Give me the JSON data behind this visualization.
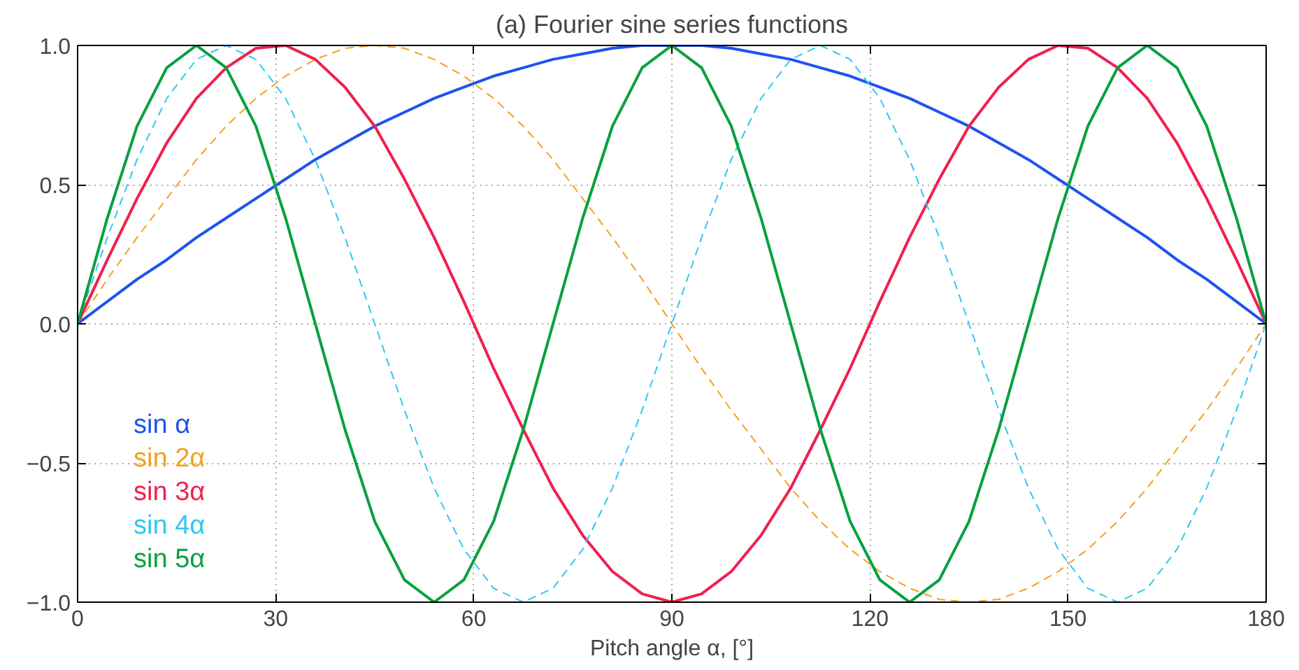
{
  "chart_data": {
    "type": "line",
    "title": "(a) Fourier sine series functions",
    "xlabel": "Pitch angle α, [°]",
    "x": [
      0,
      4.5,
      9,
      13.5,
      18,
      22.5,
      27,
      31.5,
      36,
      40.5,
      45,
      49.5,
      54,
      58.5,
      63,
      67.5,
      72,
      76.5,
      81,
      85.5,
      90,
      94.5,
      99,
      103.5,
      108,
      112.5,
      117,
      121.5,
      126,
      130.5,
      135,
      139.5,
      144,
      148.5,
      153,
      157.5,
      162,
      166.5,
      171,
      175.5,
      180
    ],
    "series": [
      {
        "name": "sin α",
        "color": "#1f52f0",
        "line_style": "solid",
        "values": [
          0,
          0.08,
          0.16,
          0.23,
          0.31,
          0.38,
          0.45,
          0.52,
          0.59,
          0.65,
          0.71,
          0.76,
          0.81,
          0.85,
          0.89,
          0.92,
          0.95,
          0.97,
          0.99,
          1,
          1,
          1,
          0.99,
          0.97,
          0.95,
          0.92,
          0.89,
          0.85,
          0.81,
          0.76,
          0.71,
          0.65,
          0.59,
          0.52,
          0.45,
          0.38,
          0.31,
          0.23,
          0.16,
          0.08,
          0
        ]
      },
      {
        "name": "sin 2α",
        "color": "#f5a020",
        "line_style": "dashed",
        "values": [
          0,
          0.16,
          0.31,
          0.45,
          0.59,
          0.71,
          0.81,
          0.89,
          0.95,
          0.99,
          1,
          0.99,
          0.95,
          0.89,
          0.81,
          0.71,
          0.59,
          0.45,
          0.31,
          0.16,
          0,
          -0.16,
          -0.31,
          -0.45,
          -0.59,
          -0.71,
          -0.81,
          -0.89,
          -0.95,
          -0.99,
          -1,
          -0.99,
          -0.95,
          -0.89,
          -0.81,
          -0.71,
          -0.59,
          -0.45,
          -0.31,
          -0.16,
          0
        ]
      },
      {
        "name": "sin 3α",
        "color": "#f0204f",
        "line_style": "solid",
        "values": [
          0,
          0.23,
          0.45,
          0.65,
          0.81,
          0.92,
          0.99,
          1,
          0.95,
          0.85,
          0.71,
          0.52,
          0.31,
          0.08,
          -0.16,
          -0.38,
          -0.59,
          -0.76,
          -0.89,
          -0.97,
          -1,
          -0.97,
          -0.89,
          -0.76,
          -0.59,
          -0.38,
          -0.16,
          0.08,
          0.31,
          0.52,
          0.71,
          0.85,
          0.95,
          1,
          0.99,
          0.92,
          0.81,
          0.65,
          0.45,
          0.23,
          0
        ]
      },
      {
        "name": "sin 4α",
        "color": "#30c8f0",
        "line_style": "dashed",
        "values": [
          0,
          0.31,
          0.59,
          0.81,
          0.95,
          1,
          0.95,
          0.81,
          0.59,
          0.31,
          0,
          -0.31,
          -0.59,
          -0.81,
          -0.95,
          -1,
          -0.95,
          -0.81,
          -0.59,
          -0.31,
          0,
          0.31,
          0.59,
          0.81,
          0.95,
          1,
          0.95,
          0.81,
          0.59,
          0.31,
          0,
          -0.31,
          -0.59,
          -0.81,
          -0.95,
          -1,
          -0.95,
          -0.81,
          -0.59,
          -0.31,
          0
        ]
      },
      {
        "name": "sin 5α",
        "color": "#0aa040",
        "line_style": "solid",
        "values": [
          0,
          0.38,
          0.71,
          0.92,
          1,
          0.92,
          0.71,
          0.38,
          0,
          -0.38,
          -0.71,
          -0.92,
          -1,
          -0.92,
          -0.71,
          -0.38,
          0,
          0.38,
          0.71,
          0.92,
          1,
          0.92,
          0.71,
          0.38,
          0,
          -0.38,
          -0.71,
          -0.92,
          -1,
          -0.92,
          -0.71,
          -0.38,
          0,
          0.38,
          0.71,
          0.92,
          1,
          0.92,
          0.71,
          0.38,
          0
        ]
      }
    ],
    "xlim": [
      0,
      180
    ],
    "xticks": [
      0,
      30,
      60,
      90,
      120,
      150,
      180
    ],
    "ylim": [
      -1,
      1
    ],
    "yticks": [
      {
        "value": -1,
        "label": "−1.0"
      },
      {
        "value": -0.5,
        "label": "−0.5"
      },
      {
        "value": 0,
        "label": "0.0"
      },
      {
        "value": 0.5,
        "label": "0.5"
      },
      {
        "value": 1,
        "label": "1.0"
      }
    ],
    "grid": true,
    "legend": "bottom left",
    "marker": "none"
  }
}
